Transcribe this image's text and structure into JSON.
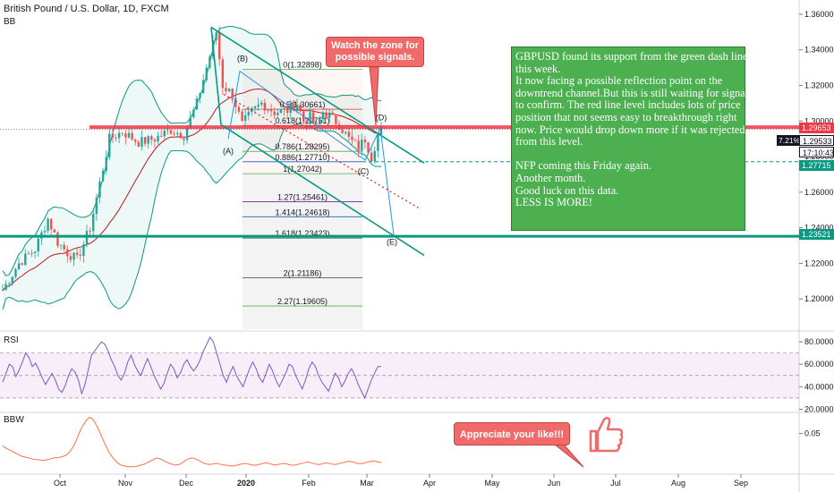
{
  "header": {
    "title": "British Pound / U.S. Dollar, 1D, FXCM",
    "indicator_bb": "BB",
    "indicator_rsi": "RSI",
    "indicator_bbw": "BBW"
  },
  "chart_data": [
    {
      "type": "candlestick",
      "title": "British Pound / U.S. Dollar, 1D, FXCM",
      "y_ticks": [
        "1.36000",
        "1.34000",
        "1.32000",
        "1.30000",
        "1.28000",
        "1.26000",
        "1.24000",
        "1.22000",
        "1.20000"
      ],
      "ylim": [
        1.183,
        1.368
      ],
      "x_ticks": [
        "Oct",
        "Nov",
        "Dec",
        "2020",
        "Feb",
        "Mar",
        "Apr",
        "May",
        "Jun",
        "Jul",
        "Aug",
        "Sep"
      ],
      "price_labels": {
        "resistance": "1.29653",
        "last_price": "1.29533",
        "change_pct": "7.21%",
        "countdown": "17:10:43",
        "fib_1": "1.27715",
        "support": "1.23521"
      },
      "fibonacci_levels": [
        {
          "label": "0(1.32898)",
          "value": 1.32898,
          "color": "#4caf50"
        },
        {
          "label": "0.5(1.30661)",
          "value": 1.30661,
          "color": "#e53935"
        },
        {
          "label": "0.618(1.29751)",
          "value": 1.29751,
          "color": "#e53935"
        },
        {
          "label": "0.786(1.28295)",
          "value": 1.28295,
          "color": "#4caf50"
        },
        {
          "label": "0.886(1.27710)",
          "value": 1.2771,
          "color": "#1565c0"
        },
        {
          "label": "1(1.27042)",
          "value": 1.27042,
          "color": "#4caf50"
        },
        {
          "label": "1.27(1.25461)",
          "value": 1.25461,
          "color": "#7b1fa2"
        },
        {
          "label": "1.414(1.24618)",
          "value": 1.24618,
          "color": "#1565c0"
        },
        {
          "label": "1.618(1.23423)",
          "value": 1.23423,
          "color": "#1b5e20"
        },
        {
          "label": "2(1.21186)",
          "value": 1.21186,
          "color": "#424242"
        },
        {
          "label": "2.27(1.19605)",
          "value": 1.19605,
          "color": "#4caf50"
        }
      ],
      "wave_labels": [
        "(A)",
        "(B)",
        "(C)",
        "(D)",
        "(E)"
      ],
      "horizontal_levels": {
        "resistance": 1.29653,
        "support": 1.23521,
        "fib_dashed": 1.27715
      },
      "colors": {
        "up": "#26a69a",
        "down": "#ef5350",
        "resistance": "#f23645",
        "support": "#089981",
        "channel": "#089981"
      }
    },
    {
      "type": "line",
      "name": "RSI",
      "y_ticks": [
        "80.0000",
        "60.0000",
        "40.0000",
        "20.0000"
      ],
      "ylim": [
        18,
        88
      ],
      "bands": [
        70,
        30
      ],
      "values": [
        44,
        52,
        60,
        58,
        49,
        55,
        62,
        70,
        66,
        58,
        61,
        55,
        48,
        42,
        47,
        52,
        46,
        38,
        35,
        41,
        50,
        56,
        53,
        46,
        34,
        42,
        55,
        68,
        72,
        76,
        80,
        78,
        72,
        64,
        58,
        50,
        46,
        52,
        62,
        68,
        60,
        54,
        50,
        58,
        65,
        58,
        50,
        44,
        38,
        43,
        52,
        60,
        56,
        48,
        52,
        60,
        64,
        58,
        54,
        58,
        64,
        72,
        78,
        84,
        80,
        70,
        60,
        50,
        44,
        52,
        58,
        50,
        45,
        40,
        48,
        56,
        62,
        56,
        48,
        44,
        52,
        60,
        54,
        46,
        40,
        46,
        52,
        60,
        58,
        50,
        44,
        38,
        46,
        56,
        62,
        58,
        50,
        44,
        40,
        36,
        44,
        52,
        48,
        40,
        45,
        52,
        56,
        50,
        42,
        36,
        30,
        38,
        46,
        52,
        58,
        58
      ],
      "color": "#7e57c2"
    },
    {
      "type": "line",
      "name": "BBW",
      "y_ticks": [
        "0.05"
      ],
      "ylim": [
        0.0,
        0.075
      ],
      "values": [
        0.035,
        0.032,
        0.03,
        0.028,
        0.026,
        0.024,
        0.022,
        0.021,
        0.02,
        0.019,
        0.018,
        0.018,
        0.017,
        0.017,
        0.018,
        0.019,
        0.02,
        0.02,
        0.021,
        0.022,
        0.024,
        0.028,
        0.034,
        0.042,
        0.052,
        0.06,
        0.066,
        0.07,
        0.068,
        0.062,
        0.054,
        0.045,
        0.036,
        0.028,
        0.022,
        0.017,
        0.013,
        0.011,
        0.01,
        0.009,
        0.009,
        0.009,
        0.01,
        0.011,
        0.012,
        0.014,
        0.016,
        0.018,
        0.02,
        0.019,
        0.017,
        0.015,
        0.013,
        0.012,
        0.011,
        0.012,
        0.014,
        0.017,
        0.019,
        0.02,
        0.019,
        0.017,
        0.015,
        0.013,
        0.012,
        0.012,
        0.013,
        0.013,
        0.012,
        0.011,
        0.011,
        0.01,
        0.01,
        0.011,
        0.012,
        0.013,
        0.013,
        0.012,
        0.011,
        0.011,
        0.012,
        0.013,
        0.014,
        0.013,
        0.012,
        0.011,
        0.012,
        0.013,
        0.013,
        0.012,
        0.011,
        0.011,
        0.012,
        0.013,
        0.014,
        0.015,
        0.014,
        0.013,
        0.012,
        0.012,
        0.013,
        0.014,
        0.013,
        0.012,
        0.012,
        0.013,
        0.014,
        0.015,
        0.016,
        0.015,
        0.014,
        0.013,
        0.013,
        0.014,
        0.015,
        0.016,
        0.016,
        0.015,
        0.014
      ],
      "color": "#ff7043"
    }
  ],
  "annotations": {
    "callout_zone": [
      "Watch the zone for",
      "possible signals."
    ],
    "callout_like": "Appreciate your like!!!",
    "note_lines": [
      "GBPUSD found its support from the green dash line",
      "this week.",
      "It now facing a possible reflection point on the",
      "downtrend channel.But this is still waiting for signals",
      "to confirm. The red line level includes lots of price",
      "position that not seems easy to breakthrough right",
      "now. Price would drop down more if it was rejected",
      "from this level.",
      "",
      "NFP coming this Friday again.",
      "Another month.",
      "Good luck on this data.",
      "LESS IS MORE!"
    ],
    "thumbs_icon": "thumbs-up-icon"
  }
}
